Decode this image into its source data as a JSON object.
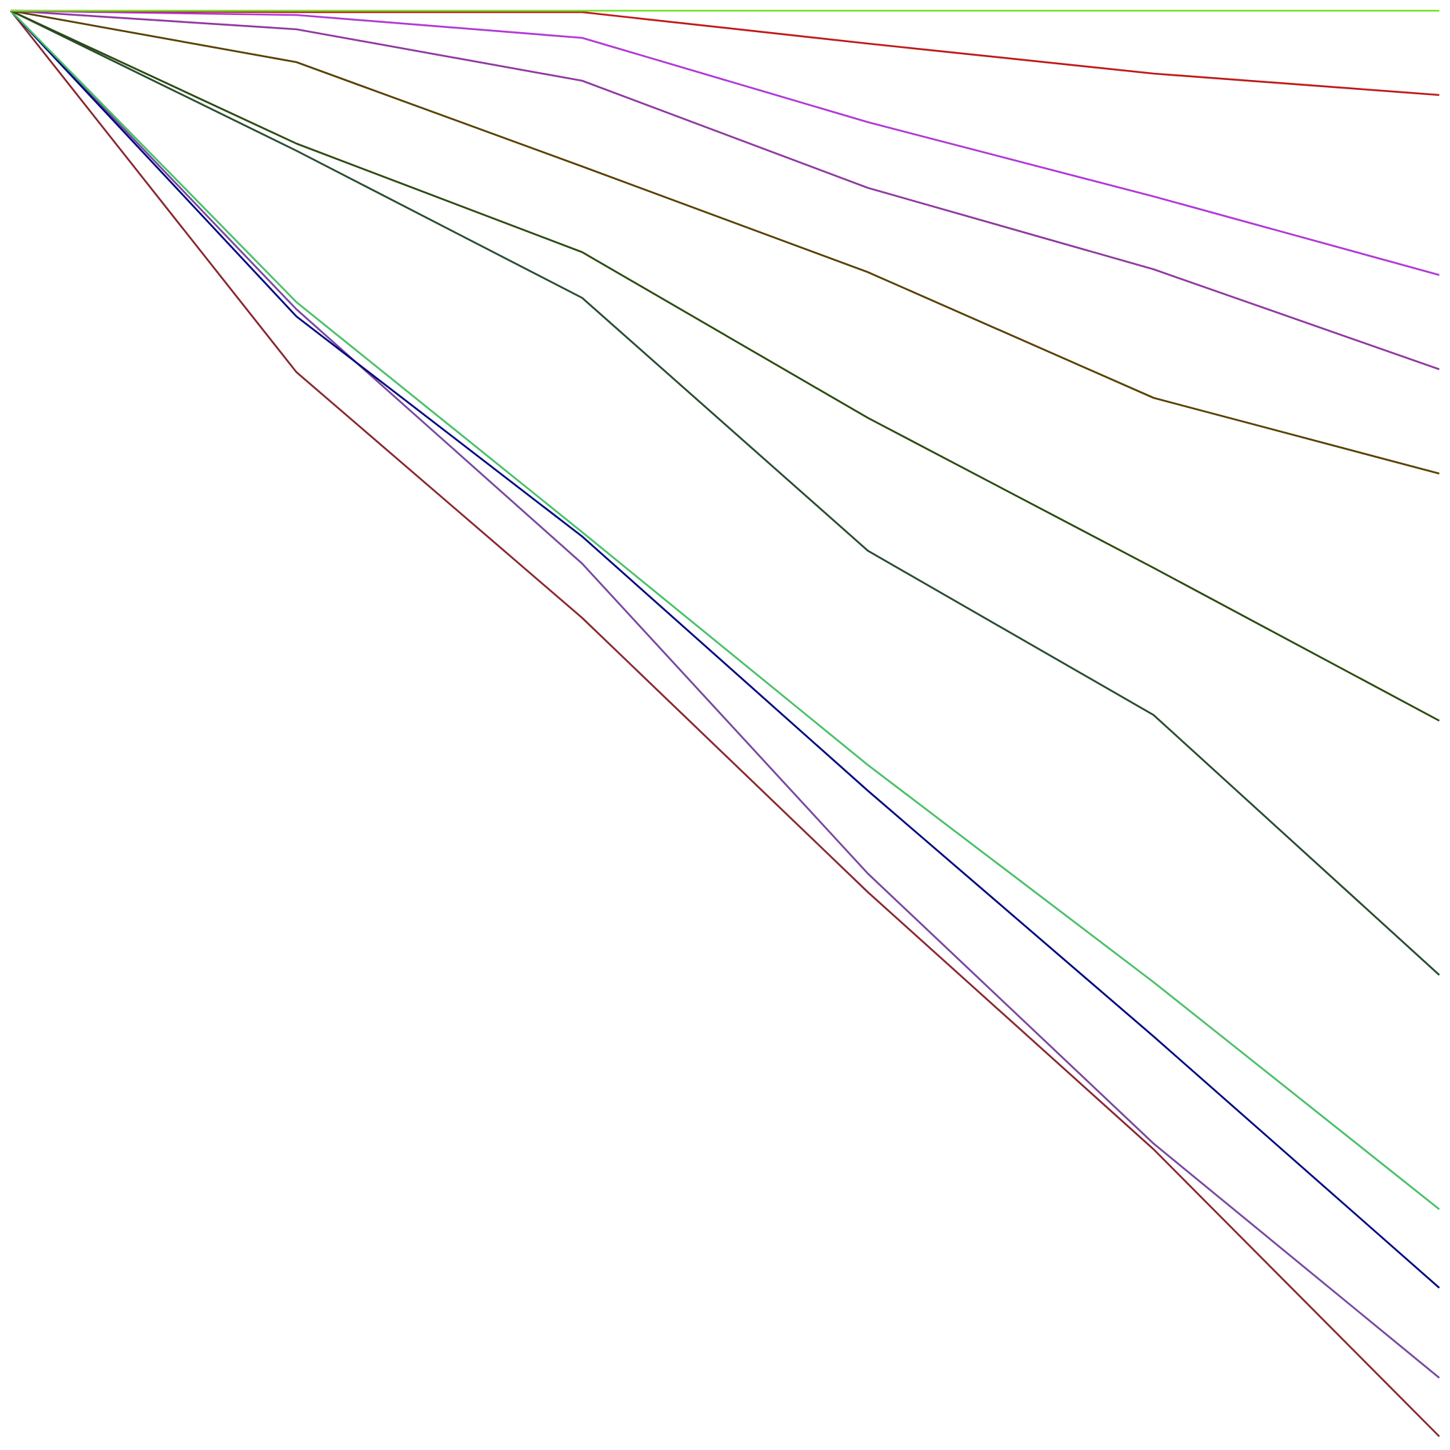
{
  "chart_data": {
    "type": "line",
    "title": "",
    "xlabel": "",
    "ylabel": "",
    "axes_visible": false,
    "grid": false,
    "legend": "none",
    "x": [
      0,
      1,
      2,
      3,
      4,
      5
    ],
    "xlim": [
      0,
      5
    ],
    "ylim": [
      0,
      100
    ],
    "series": [
      {
        "color": "#78e030",
        "values": [
          100,
          100,
          100,
          100,
          100,
          100
        ]
      },
      {
        "color": "#c01818",
        "values": [
          100,
          99.9,
          99.9,
          97.7,
          95.6,
          94.1
        ]
      },
      {
        "color": "#b038d8",
        "values": [
          100,
          99.7,
          98.1,
          92.2,
          87.0,
          81.5
        ]
      },
      {
        "color": "#9038a0",
        "values": [
          100,
          98.7,
          95.1,
          87.6,
          81.9,
          74.9
        ]
      },
      {
        "color": "#584000",
        "values": [
          100,
          96.4,
          89.1,
          81.7,
          72.9,
          67.6
        ]
      },
      {
        "color": "#2c4a10",
        "values": [
          100,
          90.7,
          83.1,
          71.5,
          61.0,
          50.3
        ]
      },
      {
        "color": "#284c30",
        "values": [
          100,
          90.2,
          79.9,
          62.2,
          50.7,
          32.5
        ]
      },
      {
        "color": "#48c068",
        "values": [
          100,
          79.6,
          63.5,
          47.2,
          32.0,
          16.1
        ]
      },
      {
        "color": "#000880",
        "values": [
          100,
          78.6,
          63.2,
          45.4,
          28.2,
          10.6
        ]
      },
      {
        "color": "#7848a0",
        "values": [
          100,
          79.1,
          61.3,
          39.6,
          20.7,
          4.3
        ]
      },
      {
        "color": "#882830",
        "values": [
          100,
          74.7,
          57.5,
          38.3,
          20.3,
          0.2
        ]
      }
    ]
  }
}
